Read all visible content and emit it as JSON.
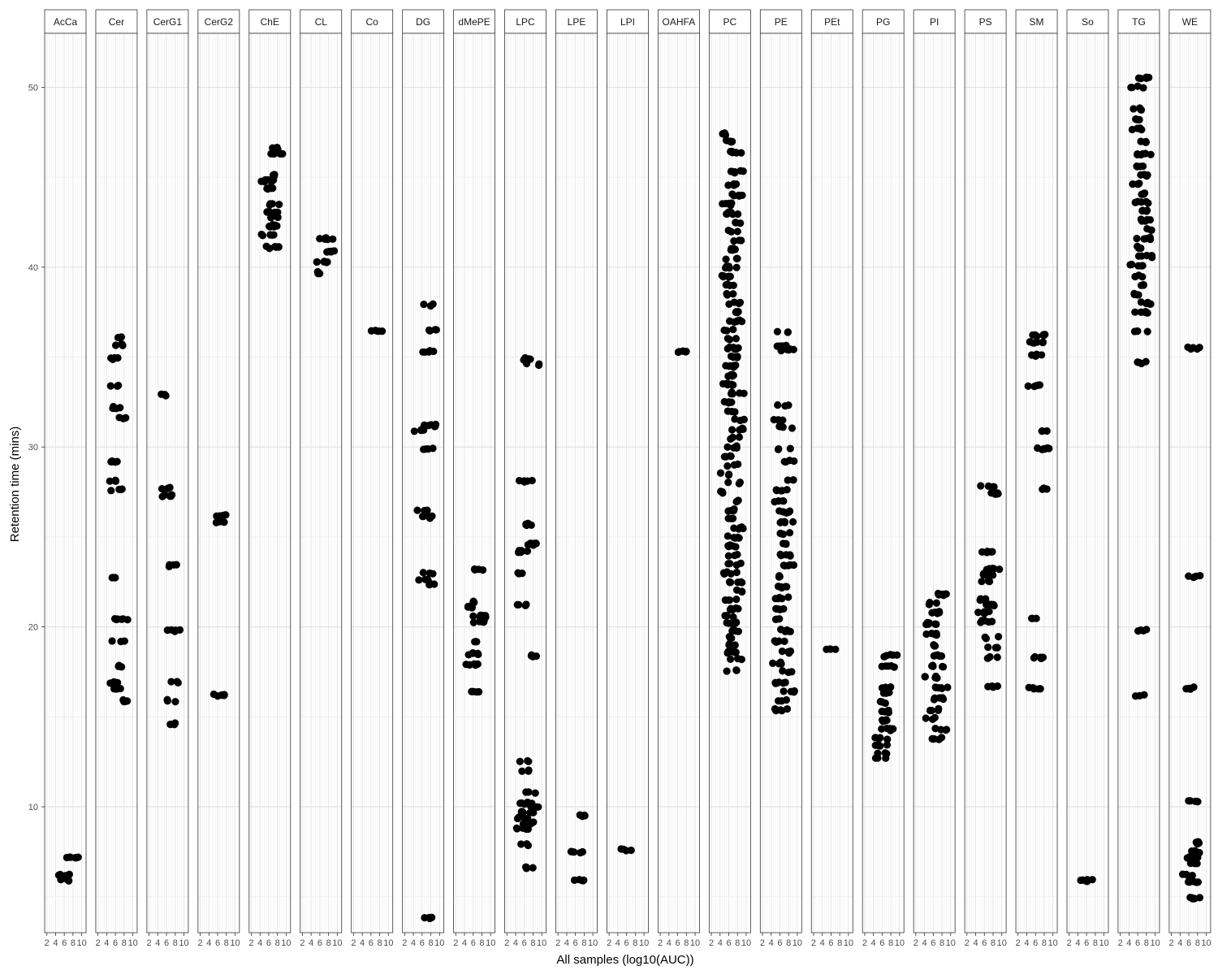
{
  "chart_data": {
    "type": "scatter",
    "xlabel": "All samples (log10(AUC))",
    "ylabel": "Retention time (mins)",
    "xlim": [
      1.5,
      11
    ],
    "ylim": [
      3,
      53
    ],
    "x_ticks": [
      2,
      4,
      6,
      8,
      10
    ],
    "y_ticks": [
      10,
      20,
      30,
      40,
      50
    ],
    "grid": true,
    "point_color": "#000000",
    "facets": [
      {
        "name": "AcCa",
        "rt": [
          5.9,
          6.2,
          7.2
        ]
      },
      {
        "name": "Cer",
        "rt": [
          15.9,
          16.6,
          16.9,
          17.8,
          19.2,
          20.4,
          22.7,
          27.6,
          28.1,
          29.2,
          31.6,
          32.2,
          33.4,
          34.9,
          35.7,
          36.1
        ]
      },
      {
        "name": "CerG1",
        "rt": [
          14.6,
          15.9,
          16.9,
          19.8,
          23.4,
          27.3,
          27.7,
          32.9
        ]
      },
      {
        "name": "CerG2",
        "rt": [
          16.2,
          25.8,
          26.2
        ]
      },
      {
        "name": "ChE",
        "rt": [
          41.1,
          41.8,
          42.3,
          42.8,
          43.1,
          43.5,
          44.4,
          44.8,
          45.1,
          46.3,
          46.6
        ]
      },
      {
        "name": "CL",
        "rt": [
          39.7,
          40.3,
          40.9,
          41.6
        ]
      },
      {
        "name": "Co",
        "rt": [
          36.5
        ]
      },
      {
        "name": "DG",
        "rt": [
          3.8,
          22.4,
          22.6,
          23.0,
          26.1,
          26.5,
          29.9,
          30.9,
          31.2,
          35.3,
          36.5,
          37.9
        ]
      },
      {
        "name": "dMePE",
        "rt": [
          16.4,
          17.9,
          18.5,
          19.2,
          20.3,
          20.6,
          21.1,
          21.4,
          23.2
        ]
      },
      {
        "name": "LPC",
        "rt": [
          6.6,
          7.9,
          8.8,
          9.1,
          9.4,
          9.7,
          10.0,
          10.2,
          10.8,
          12.0,
          12.5,
          18.4,
          21.2,
          23.0,
          24.2,
          24.6,
          25.7,
          28.1,
          34.6,
          34.9
        ]
      },
      {
        "name": "LPE",
        "rt": [
          5.9,
          7.5,
          9.5
        ]
      },
      {
        "name": "LPI",
        "rt": [
          7.6
        ]
      },
      {
        "name": "OAHFA",
        "rt": [
          35.3
        ]
      },
      {
        "name": "PC",
        "rt": [
          17.6,
          18.2,
          18.6,
          19.0,
          19.4,
          19.8,
          20.2,
          20.6,
          21.0,
          21.5,
          22.0,
          22.5,
          23.0,
          23.5,
          24.0,
          24.5,
          25.0,
          25.5,
          26.0,
          26.5,
          27.0,
          27.5,
          28.0,
          28.5,
          29.0,
          29.5,
          30.0,
          30.5,
          31.0,
          31.5,
          32.0,
          32.5,
          33.0,
          33.5,
          34.0,
          34.5,
          35.0,
          35.5,
          36.0,
          36.5,
          37.0,
          37.5,
          38.0,
          38.5,
          39.0,
          39.5,
          40.0,
          40.5,
          41.0,
          41.5,
          42.0,
          42.5,
          43.0,
          43.5,
          44.0,
          44.6,
          45.3,
          46.4,
          47.0,
          47.4
        ]
      },
      {
        "name": "PE",
        "rt": [
          15.4,
          15.9,
          16.4,
          16.9,
          17.5,
          18.0,
          18.6,
          19.2,
          19.8,
          20.4,
          21.0,
          21.6,
          22.2,
          22.8,
          23.4,
          24.0,
          24.6,
          25.2,
          25.8,
          26.4,
          27.0,
          27.6,
          28.2,
          29.2,
          29.9,
          31.1,
          31.5,
          32.3,
          35.4,
          35.6,
          36.4
        ]
      },
      {
        "name": "PEt",
        "rt": [
          18.8
        ]
      },
      {
        "name": "PG",
        "rt": [
          12.7,
          13.0,
          13.4,
          13.8,
          14.3,
          14.8,
          15.3,
          15.8,
          16.3,
          16.6,
          17.8,
          18.4
        ]
      },
      {
        "name": "PI",
        "rt": [
          13.8,
          14.3,
          14.9,
          15.4,
          16.0,
          16.6,
          17.2,
          17.8,
          18.4,
          19.0,
          19.6,
          20.2,
          20.8,
          21.3,
          21.8
        ]
      },
      {
        "name": "PS",
        "rt": [
          16.7,
          18.3,
          18.9,
          19.4,
          20.3,
          20.8,
          21.2,
          21.5,
          22.5,
          22.9,
          23.2,
          24.2,
          27.4,
          27.8
        ]
      },
      {
        "name": "SM",
        "rt": [
          16.6,
          18.3,
          20.5,
          27.7,
          29.9,
          30.9,
          33.4,
          35.1,
          35.8,
          36.2
        ]
      },
      {
        "name": "So",
        "rt": [
          5.9
        ]
      },
      {
        "name": "TG",
        "rt": [
          16.2,
          19.8,
          34.7,
          36.4,
          37.5,
          38.0,
          38.5,
          39.0,
          39.5,
          40.1,
          40.6,
          41.1,
          41.6,
          42.1,
          42.6,
          43.1,
          43.6,
          44.1,
          44.6,
          45.1,
          45.6,
          46.3,
          47.0,
          47.7,
          48.2,
          48.8,
          50.0,
          50.5
        ]
      },
      {
        "name": "WE",
        "rt": [
          4.9,
          5.8,
          6.2,
          6.9,
          7.2,
          7.5,
          8.0,
          10.3,
          16.6,
          22.8,
          35.5
        ]
      }
    ]
  }
}
